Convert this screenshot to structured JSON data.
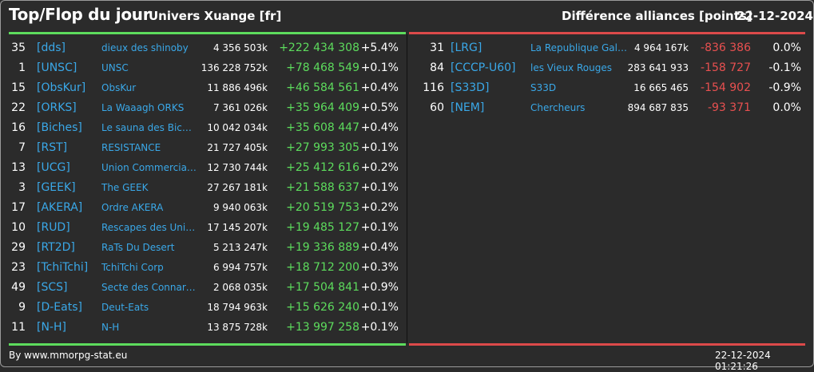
{
  "header": {
    "title": "Top/Flop du jour",
    "universe": "Univers Xuange [fr]",
    "diff_label": "Différence alliances [points]",
    "date": "22-12-2024"
  },
  "colors": {
    "top_accent": "#5ddc5d",
    "flop_accent": "#dc4a4a",
    "link": "#3aa8e8"
  },
  "top": [
    {
      "rank": "35",
      "tag": "[dds]",
      "name": "dieux des shinoby",
      "points": "4 356 503k",
      "delta": "+222 434 308",
      "pct": "+5.4%"
    },
    {
      "rank": "1",
      "tag": "[UNSC]",
      "name": "UNSC",
      "points": "136 228 752k",
      "delta": "+78 468 549",
      "pct": "+0.1%"
    },
    {
      "rank": "15",
      "tag": "[ObsKur]",
      "name": "ObsKur",
      "points": "11 886 496k",
      "delta": "+46 584 561",
      "pct": "+0.4%"
    },
    {
      "rank": "22",
      "tag": "[ORKS]",
      "name": "La Waaagh ORKS",
      "points": "7 361 026k",
      "delta": "+35 964 409",
      "pct": "+0.5%"
    },
    {
      "rank": "16",
      "tag": "[Biches]",
      "name": "Le sauna des Biche...",
      "points": "10 042 034k",
      "delta": "+35 608 447",
      "pct": "+0.4%"
    },
    {
      "rank": "7",
      "tag": "[RST]",
      "name": "RESISTANCE",
      "points": "21 727 405k",
      "delta": "+27 993 305",
      "pct": "+0.1%"
    },
    {
      "rank": "13",
      "tag": "[UCG]",
      "name": "Union Commerciale...",
      "points": "12 730 744k",
      "delta": "+25 412 616",
      "pct": "+0.2%"
    },
    {
      "rank": "3",
      "tag": "[GEEK]",
      "name": "The GEEK",
      "points": "27 267 181k",
      "delta": "+21 588 637",
      "pct": "+0.1%"
    },
    {
      "rank": "17",
      "tag": "[AKERA]",
      "name": "Ordre AKERA",
      "points": "9 940 063k",
      "delta": "+20 519 753",
      "pct": "+0.2%"
    },
    {
      "rank": "10",
      "tag": "[RUD]",
      "name": "Rescapes des Univ...",
      "points": "17 145 207k",
      "delta": "+19 485 127",
      "pct": "+0.1%"
    },
    {
      "rank": "29",
      "tag": "[RT2D]",
      "name": "RaTs Du Desert",
      "points": "5 213 247k",
      "delta": "+19 336 889",
      "pct": "+0.4%"
    },
    {
      "rank": "23",
      "tag": "[TchiTchi]",
      "name": "TchiTchi Corp",
      "points": "6 994 757k",
      "delta": "+18 712 200",
      "pct": "+0.3%"
    },
    {
      "rank": "49",
      "tag": "[SCS]",
      "name": "Secte des Connard...",
      "points": "2 068 035k",
      "delta": "+17 504 841",
      "pct": "+0.9%"
    },
    {
      "rank": "9",
      "tag": "[D-Eats]",
      "name": "Deut-Eats",
      "points": "18 794 963k",
      "delta": "+15 626 240",
      "pct": "+0.1%"
    },
    {
      "rank": "11",
      "tag": "[N-H]",
      "name": "N-H",
      "points": "13 875 728k",
      "delta": "+13 997 258",
      "pct": "+0.1%"
    }
  ],
  "flop": [
    {
      "rank": "31",
      "tag": "[LRG]",
      "name": "La Republique Gala...",
      "points": "4 964 167k",
      "delta": "-836 386",
      "pct": "0.0%"
    },
    {
      "rank": "84",
      "tag": "[CCCP-U60]",
      "name": "les Vieux Rouges",
      "points": "283 641 933",
      "delta": "-158 727",
      "pct": "-0.1%"
    },
    {
      "rank": "116",
      "tag": "[S33D]",
      "name": "S33D",
      "points": "16 665 465",
      "delta": "-154 902",
      "pct": "-0.9%"
    },
    {
      "rank": "60",
      "tag": "[NEM]",
      "name": "Chercheurs",
      "points": "894 687 835",
      "delta": "-93 371",
      "pct": "0.0%"
    }
  ],
  "footer": {
    "source": "By www.mmorpg-stat.eu",
    "timestamp": "22-12-2024 01:21:26"
  }
}
